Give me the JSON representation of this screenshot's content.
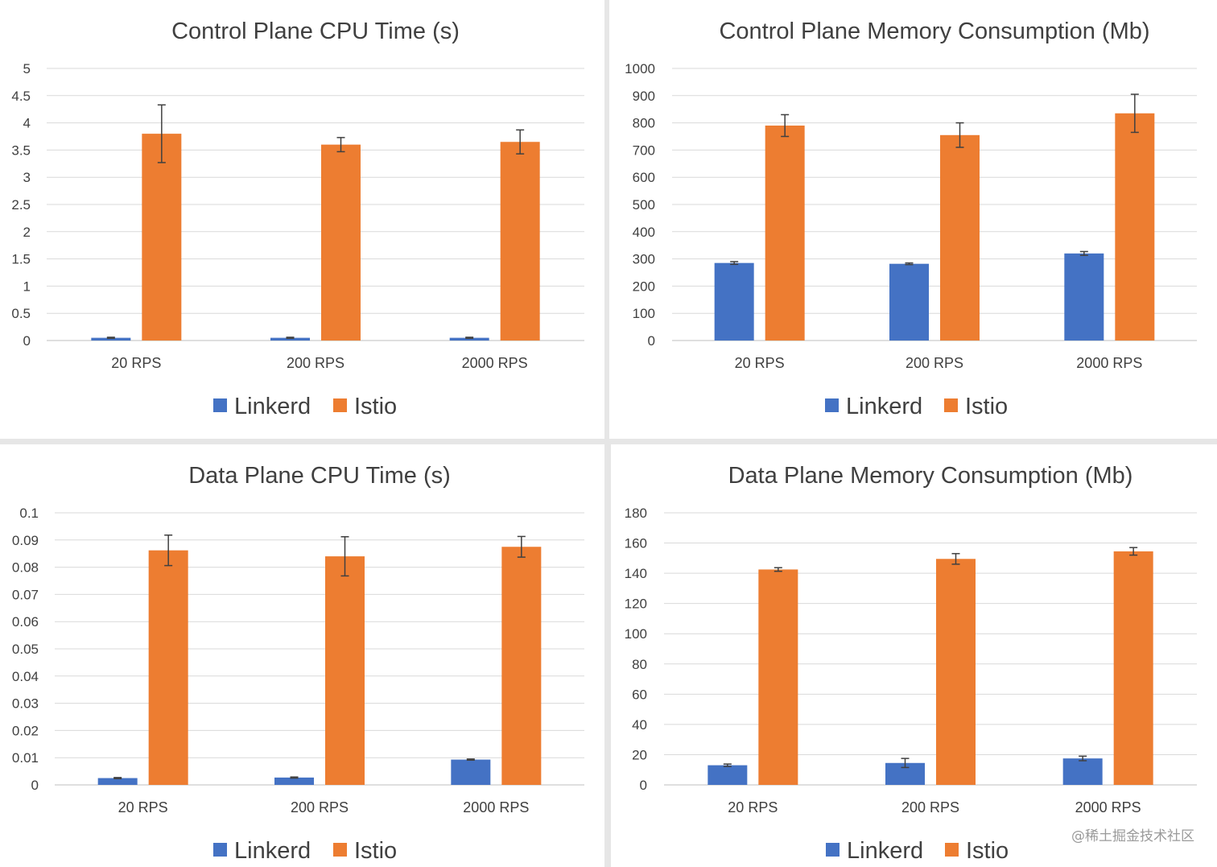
{
  "colors": {
    "linkerd": "#4472c4",
    "istio": "#ed7d31",
    "grid": "#d9d9d9",
    "text": "#404040",
    "errorbar": "#404040"
  },
  "watermark": "@稀土掘金技术社区",
  "chart_data": [
    {
      "type": "bar",
      "title": "Control Plane CPU Time (s)",
      "categories": [
        "20 RPS",
        "200 RPS",
        "2000 RPS"
      ],
      "yticks": [
        "0",
        "0.5",
        "1",
        "1.5",
        "2",
        "2.5",
        "3",
        "3.5",
        "4",
        "4.5",
        "5"
      ],
      "ylim": [
        0,
        5
      ],
      "legend_position": "bottom",
      "grid": true,
      "series": [
        {
          "name": "Linkerd",
          "values": [
            0.05,
            0.05,
            0.05
          ],
          "errors": [
            0.01,
            0.01,
            0.01
          ]
        },
        {
          "name": "Istio",
          "values": [
            3.8,
            3.6,
            3.65
          ],
          "errors": [
            0.53,
            0.13,
            0.22
          ]
        }
      ]
    },
    {
      "type": "bar",
      "title": "Control Plane Memory Consumption (Mb)",
      "categories": [
        "20 RPS",
        "200 RPS",
        "2000 RPS"
      ],
      "yticks": [
        "0",
        "100",
        "200",
        "300",
        "400",
        "500",
        "600",
        "700",
        "800",
        "900",
        "1000"
      ],
      "ylim": [
        0,
        1000
      ],
      "legend_position": "bottom",
      "grid": true,
      "series": [
        {
          "name": "Linkerd",
          "values": [
            285,
            282,
            320
          ],
          "errors": [
            5,
            3,
            7
          ]
        },
        {
          "name": "Istio",
          "values": [
            790,
            755,
            835
          ],
          "errors": [
            40,
            45,
            70
          ]
        }
      ]
    },
    {
      "type": "bar",
      "title": "Data Plane CPU Time (s)",
      "categories": [
        "20 RPS",
        "200 RPS",
        "2000 RPS"
      ],
      "yticks": [
        "0",
        "0.01",
        "0.02",
        "0.03",
        "0.04",
        "0.05",
        "0.06",
        "0.07",
        "0.08",
        "0.09",
        "0.1"
      ],
      "ylim": [
        0,
        0.1
      ],
      "legend_position": "bottom",
      "grid": true,
      "series": [
        {
          "name": "Linkerd",
          "values": [
            0.0025,
            0.0027,
            0.0093
          ],
          "errors": [
            0.0002,
            0.0002,
            0.0002
          ]
        },
        {
          "name": "Istio",
          "values": [
            0.0862,
            0.084,
            0.0875
          ],
          "errors": [
            0.0056,
            0.0072,
            0.0038
          ]
        }
      ]
    },
    {
      "type": "bar",
      "title": "Data Plane Memory Consumption (Mb)",
      "categories": [
        "20 RPS",
        "200 RPS",
        "2000 RPS"
      ],
      "yticks": [
        "0",
        "20",
        "40",
        "60",
        "80",
        "100",
        "120",
        "140",
        "160",
        "180"
      ],
      "ylim": [
        0,
        180
      ],
      "legend_position": "bottom",
      "grid": true,
      "series": [
        {
          "name": "Linkerd",
          "values": [
            13,
            14.5,
            17.5
          ],
          "errors": [
            0.8,
            3,
            1.5
          ]
        },
        {
          "name": "Istio",
          "values": [
            142.5,
            149.5,
            154.5
          ],
          "errors": [
            1.2,
            3.5,
            2.5
          ]
        }
      ]
    }
  ]
}
